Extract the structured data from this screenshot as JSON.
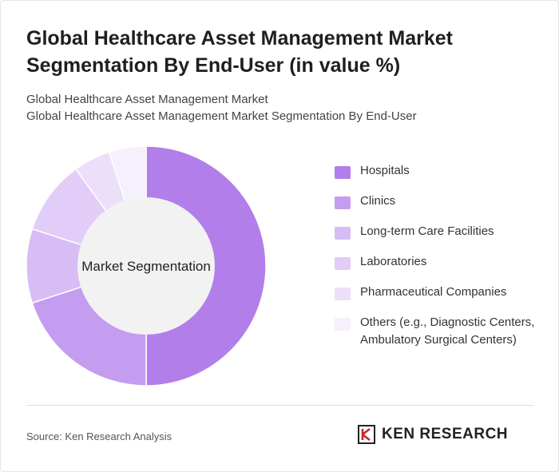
{
  "header": {
    "title": "Global Healthcare Asset Management Market Segmentation By End-User (in value %)",
    "subtitle_line1": "Global Healthcare Asset Management Market",
    "subtitle_line2": "Global Healthcare Asset Management Market Segmentation By End-User"
  },
  "chart_data": {
    "type": "pie",
    "donut": true,
    "center_label": "Market Segmentation",
    "legend_position": "right",
    "categories": [
      "Hospitals",
      "Clinics",
      "Long-term Care Facilities",
      "Laboratories",
      "Pharmaceutical Companies",
      "Others (e.g., Diagnostic Centers, Ambulatory Surgical Centers)"
    ],
    "values": [
      50,
      20,
      10,
      10,
      5,
      5
    ],
    "colors": [
      "#b27eea",
      "#c49cf0",
      "#d7bcf5",
      "#e1cdf7",
      "#ecdff9",
      "#f6effc"
    ]
  },
  "footer": {
    "source": "Source: Ken Research Analysis",
    "brand_text": "KEN RESEARCH",
    "logo_icon": "ken-research-logo-icon"
  }
}
